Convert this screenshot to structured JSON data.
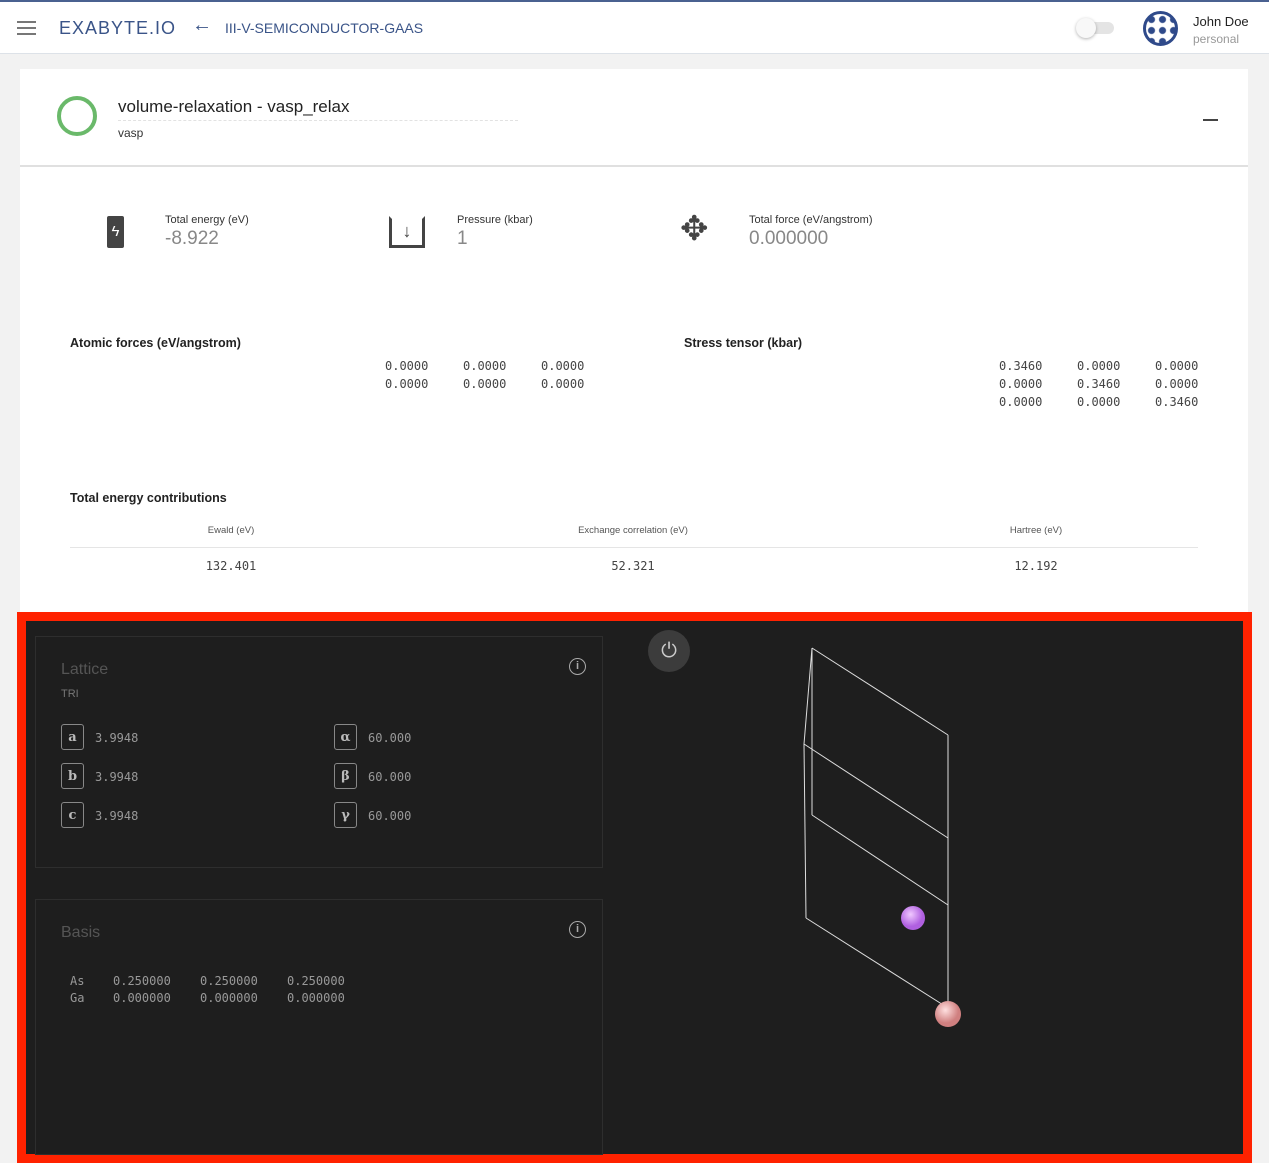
{
  "header": {
    "logo": "EXABYTE.IO",
    "project": "III-V-SEMICONDUCTOR-GAAS",
    "user_name": "John Doe",
    "account": "personal"
  },
  "unit": {
    "title": "volume-relaxation - vasp_relax",
    "application": "vasp",
    "status_color": "#6ab96a"
  },
  "metrics": [
    {
      "label": "Total energy (eV)",
      "value": "-8.922",
      "icon": "battery-charging-icon"
    },
    {
      "label": "Pressure (kbar)",
      "value": "1",
      "icon": "download-box-icon"
    },
    {
      "label": "Total force (eV/angstrom)",
      "value": "0.000000",
      "icon": "move-arrows-icon"
    }
  ],
  "atomic_forces": {
    "title": "Atomic forces (eV/angstrom)",
    "rows": [
      [
        "0.0000",
        "0.0000",
        "0.0000"
      ],
      [
        "0.0000",
        "0.0000",
        "0.0000"
      ]
    ]
  },
  "stress_tensor": {
    "title": "Stress tensor (kbar)",
    "rows": [
      [
        "0.3460",
        "0.0000",
        "0.0000"
      ],
      [
        "0.0000",
        "0.3460",
        "0.0000"
      ],
      [
        "0.0000",
        "0.0000",
        "0.3460"
      ]
    ]
  },
  "energy_contributions": {
    "title": "Total energy contributions",
    "headers": [
      "Ewald (eV)",
      "Exchange correlation (eV)",
      "Hartree (eV)"
    ],
    "values": [
      "132.401",
      "52.321",
      "12.192"
    ]
  },
  "lattice": {
    "title": "Lattice",
    "type": "TRI",
    "params": [
      {
        "key": "a",
        "value": "3.9948"
      },
      {
        "key": "b",
        "value": "3.9948"
      },
      {
        "key": "c",
        "value": "3.9948"
      },
      {
        "key": "α",
        "value": "60.000"
      },
      {
        "key": "β",
        "value": "60.000"
      },
      {
        "key": "γ",
        "value": "60.000"
      }
    ]
  },
  "basis": {
    "title": "Basis",
    "atoms": [
      {
        "element": "As",
        "coords": [
          "0.250000",
          "0.250000",
          "0.250000"
        ]
      },
      {
        "element": "Ga",
        "coords": [
          "0.000000",
          "0.000000",
          "0.000000"
        ]
      }
    ]
  },
  "colors": {
    "highlight": "#ff2200",
    "atom_as": "#c77ef0",
    "atom_ga": "#e8a0a0"
  }
}
